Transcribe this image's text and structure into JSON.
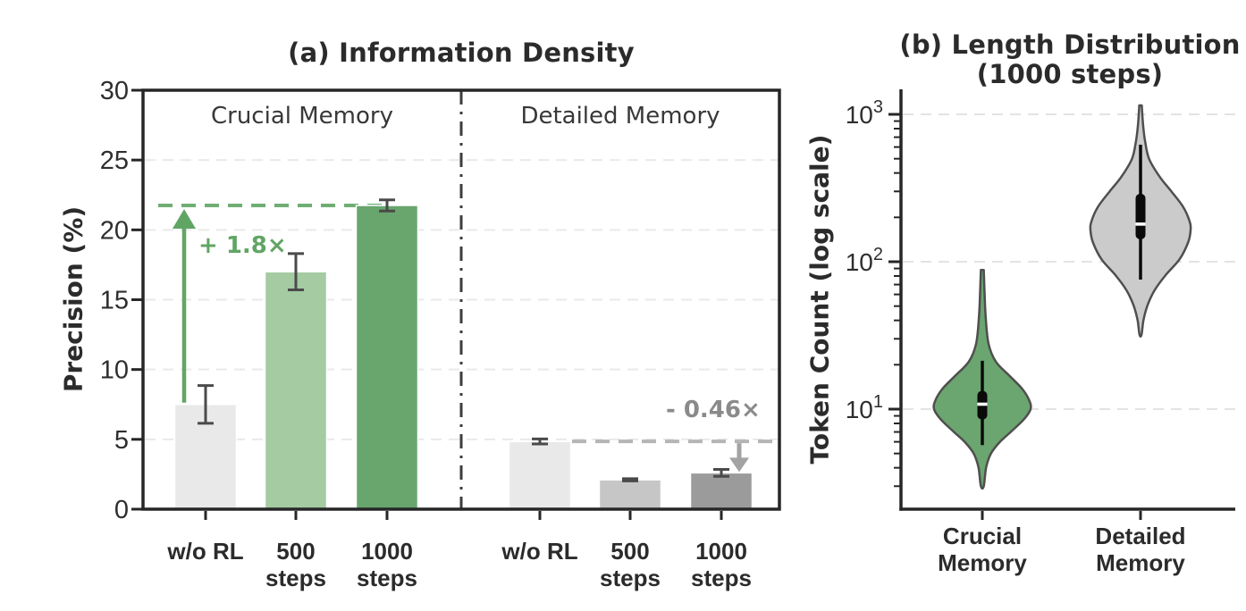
{
  "figure": {
    "background": "#ffffff"
  },
  "chart_data": [
    {
      "panel": "a",
      "type": "bar",
      "title": "(a) Information Density",
      "ylabel": "Precision (%)",
      "ylim": [
        0,
        30
      ],
      "yticks": [
        0,
        5,
        10,
        15,
        20,
        25,
        30
      ],
      "grid": "horizontal-dashed",
      "groups": [
        {
          "section": "Crucial Memory",
          "bars": [
            {
              "label_lines": [
                "w/o RL"
              ],
              "value": 7.5,
              "error": 1.35,
              "color": "#e9e9e9"
            },
            {
              "label_lines": [
                "500",
                "steps"
              ],
              "value": 17.0,
              "error": 1.3,
              "color": "#a4cba2"
            },
            {
              "label_lines": [
                "1000",
                "steps"
              ],
              "value": 21.75,
              "error": 0.4,
              "color": "#68a66e"
            }
          ],
          "ref_line": {
            "value": 21.75,
            "color": "#6fae73",
            "annotation": "+ 1.8×",
            "annotation_color": "#61a565"
          }
        },
        {
          "section": "Detailed Memory",
          "bars": [
            {
              "label_lines": [
                "w/o RL"
              ],
              "value": 4.85,
              "error": 0.18,
              "color": "#e9e9e9"
            },
            {
              "label_lines": [
                "500",
                "steps"
              ],
              "value": 2.1,
              "error": 0.08,
              "color": "#c6c6c6"
            },
            {
              "label_lines": [
                "1000",
                "steps"
              ],
              "value": 2.6,
              "error": 0.25,
              "color": "#9b9b9b"
            }
          ],
          "ref_line": {
            "value": 4.85,
            "color": "#b5b5b5",
            "annotation": "- 0.46×",
            "annotation_color": "#8a8a8a"
          }
        }
      ]
    },
    {
      "panel": "b",
      "type": "violin",
      "title_lines": [
        "(b) Length Distribution",
        "(1000 steps)"
      ],
      "ylabel": "Token Count (log scale)",
      "yscale": "log",
      "ylim": [
        2.1,
        1480
      ],
      "yticks_log": [
        "10^1",
        "10^2",
        "10^3"
      ],
      "grid": "horizontal-dashed",
      "categories": [
        {
          "label_lines": [
            "Crucial",
            "Memory"
          ],
          "color": "#6ba56f",
          "stats": {
            "median": 10.8,
            "q1": 8.5,
            "q3": 13.3,
            "whisker_low": 5.7,
            "whisker_high": 21.3,
            "min": 3.0,
            "max": 88
          },
          "profile": [
            [
              88,
              0.03
            ],
            [
              64,
              0.045
            ],
            [
              42,
              0.07
            ],
            [
              27.7,
              0.13
            ],
            [
              21,
              0.28
            ],
            [
              17,
              0.55
            ],
            [
              13.8,
              0.82
            ],
            [
              11.5,
              0.97
            ],
            [
              10.0,
              1.0
            ],
            [
              8.5,
              0.86
            ],
            [
              7.05,
              0.6
            ],
            [
              5.97,
              0.36
            ],
            [
              5.0,
              0.18
            ],
            [
              4.03,
              0.08
            ],
            [
              3.0,
              0.03
            ]
          ]
        },
        {
          "label_lines": [
            "Detailed",
            "Memory"
          ],
          "color": "#cbcbcb",
          "stats": {
            "median": 180,
            "q1": 142,
            "q3": 289,
            "whisker_low": 75.6,
            "whisker_high": 622,
            "min": 32,
            "max": 1150
          },
          "profile": [
            [
              1150,
              0.025
            ],
            [
              855,
              0.05
            ],
            [
              663,
              0.09
            ],
            [
              500,
              0.17
            ],
            [
              378,
              0.38
            ],
            [
              299,
              0.62
            ],
            [
              236,
              0.85
            ],
            [
              188,
              0.98
            ],
            [
              163,
              1.0
            ],
            [
              135,
              0.95
            ],
            [
              104,
              0.78
            ],
            [
              81,
              0.5
            ],
            [
              64,
              0.28
            ],
            [
              50.6,
              0.14
            ],
            [
              40.4,
              0.06
            ],
            [
              32,
              0.02
            ]
          ]
        }
      ]
    }
  ],
  "colors": {
    "spine": "#262626",
    "tick_label": "#2e2e2e",
    "grid_a": "#e9e9e9",
    "grid_b": "#e3e3e3",
    "divider": "#3d3d3d",
    "error_bar": "#4a4a4a",
    "violin_outline": "#4f4f4f",
    "bar_edge": "#ffffff",
    "gain_arrow": "#61a565",
    "loss_arrow": "#a3a3a3"
  }
}
